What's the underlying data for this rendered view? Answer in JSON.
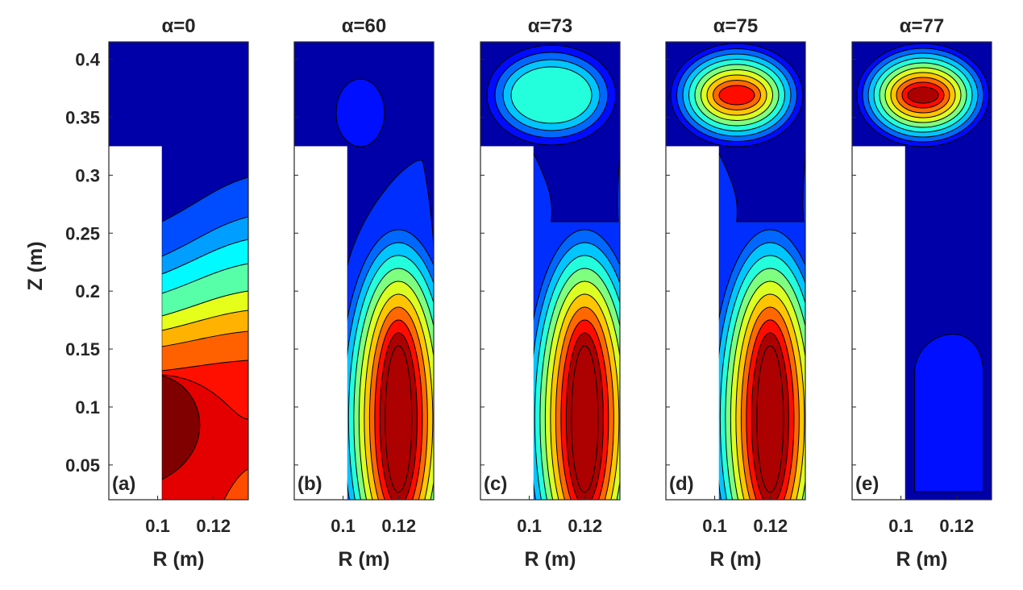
{
  "chart_data": {
    "type": "heatmap",
    "ylabel": "Z (m)",
    "xlabel": "R (m)",
    "ylim": [
      0.02,
      0.415
    ],
    "xlim": [
      0.0825,
      0.1325
    ],
    "y_ticks": [
      "0.05",
      "0.1",
      "0.15",
      "0.2",
      "0.25",
      "0.3",
      "0.35",
      "0.4"
    ],
    "x_ticks": [
      "0.1",
      "0.12"
    ],
    "colormap": "jet",
    "cutout": {
      "r_max": 0.1015,
      "z_max": 0.325
    },
    "panels": [
      {
        "title": "α=0",
        "alpha": "0",
        "tag": "(a)"
      },
      {
        "title": "α=60",
        "alpha": "60",
        "tag": "(b)"
      },
      {
        "title": "α=73",
        "alpha": "73",
        "tag": "(c)"
      },
      {
        "title": "α=75",
        "alpha": "75",
        "tag": "(d)"
      },
      {
        "title": "α=77",
        "alpha": "77",
        "tag": "(e)"
      }
    ]
  }
}
